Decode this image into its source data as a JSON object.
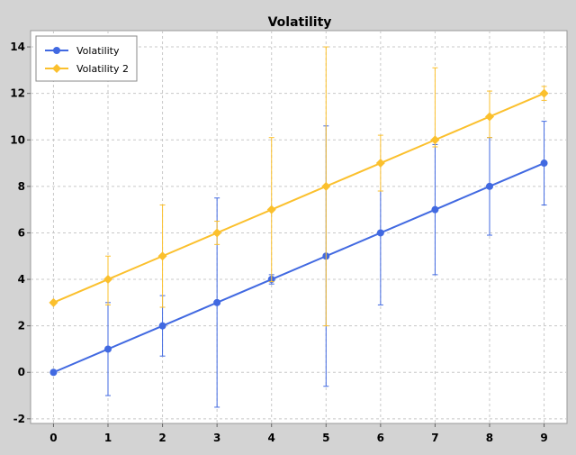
{
  "chart_data": {
    "type": "line",
    "title": "Volatility",
    "xlabel": "",
    "ylabel": "",
    "x": [
      0,
      1,
      2,
      3,
      4,
      5,
      6,
      7,
      8,
      9
    ],
    "xlim": [
      -0.42,
      9.42
    ],
    "ylim": [
      -2.2,
      14.7
    ],
    "xticks": [
      0,
      1,
      2,
      3,
      4,
      5,
      6,
      7,
      8,
      9
    ],
    "yticks": [
      -2,
      0,
      2,
      4,
      6,
      8,
      10,
      12,
      14
    ],
    "grid": true,
    "legend_position": "top-left",
    "series": [
      {
        "name": "Volatility",
        "color": "#4169e1",
        "marker": "circle",
        "values": [
          0,
          1,
          2,
          3,
          4,
          5,
          6,
          7,
          8,
          9
        ],
        "error_low": [
          null,
          -1,
          0.7,
          -1.5,
          3.8,
          -0.6,
          2.9,
          4.2,
          5.9,
          7.2
        ],
        "error_high": [
          null,
          3,
          3.3,
          7.5,
          4.2,
          10.6,
          7.8,
          9.8,
          10.1,
          10.8
        ]
      },
      {
        "name": "Volatility 2",
        "color": "#fbc02d",
        "marker": "diamond",
        "values": [
          3,
          4,
          5,
          6,
          7,
          8,
          9,
          10,
          11,
          12
        ],
        "error_low": [
          null,
          2.9,
          2.8,
          5.5,
          3.9,
          2,
          7.8,
          9.7,
          10.1,
          11.7
        ],
        "error_high": [
          null,
          5,
          7.2,
          6.5,
          10.1,
          14,
          10.2,
          13.1,
          12.1,
          12.3
        ]
      }
    ]
  }
}
